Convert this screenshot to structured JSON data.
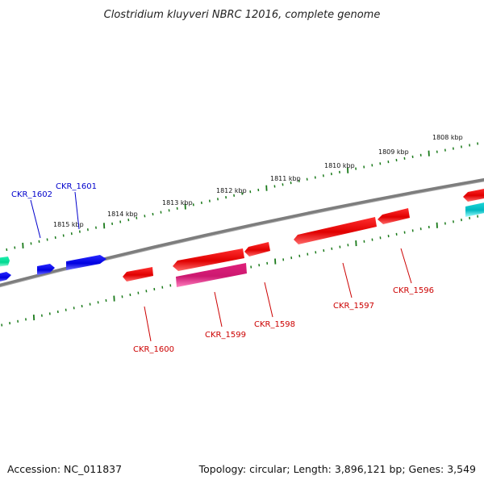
{
  "title": "Clostridium kluyveri NBRC 12016, complete genome",
  "footer": {
    "accession": "Accession: NC_011837",
    "summary": "Topology: circular; Length: 3,896,121 bp; Genes: 3,549"
  },
  "colors": {
    "backbone": "#808080",
    "ticks": "#1a7a1a",
    "forward_gene": "#0000ee",
    "reverse_gene": "#ee0000",
    "rna_gene": "#e0208a",
    "other_gene": "#00c8c8",
    "teal_gene": "#00e0a0"
  },
  "kbp_labels": [
    "1815 kbp",
    "1814 kbp",
    "1813 kbp",
    "1812 kbp",
    "1811 kbp",
    "1810 kbp",
    "1809 kbp",
    "1808 kbp"
  ],
  "genes": [
    {
      "id": "CKR_1602",
      "label": "CKR_1602",
      "strand": "forward",
      "color_key": "forward_gene"
    },
    {
      "id": "CKR_1601",
      "label": "CKR_1601",
      "strand": "forward",
      "color_key": "forward_gene"
    },
    {
      "id": "CKR_1600",
      "label": "CKR_1600",
      "strand": "reverse",
      "color_key": "reverse_gene"
    },
    {
      "id": "CKR_1599",
      "label": "CKR_1599",
      "strand": "reverse",
      "color_key": "reverse_gene"
    },
    {
      "id": "CKR_1598",
      "label": "CKR_1598",
      "strand": "reverse",
      "color_key": "reverse_gene"
    },
    {
      "id": "CKR_1597",
      "label": "CKR_1597",
      "strand": "reverse",
      "color_key": "reverse_gene"
    },
    {
      "id": "CKR_1596",
      "label": "CKR_1596",
      "strand": "reverse",
      "color_key": "reverse_gene"
    }
  ]
}
